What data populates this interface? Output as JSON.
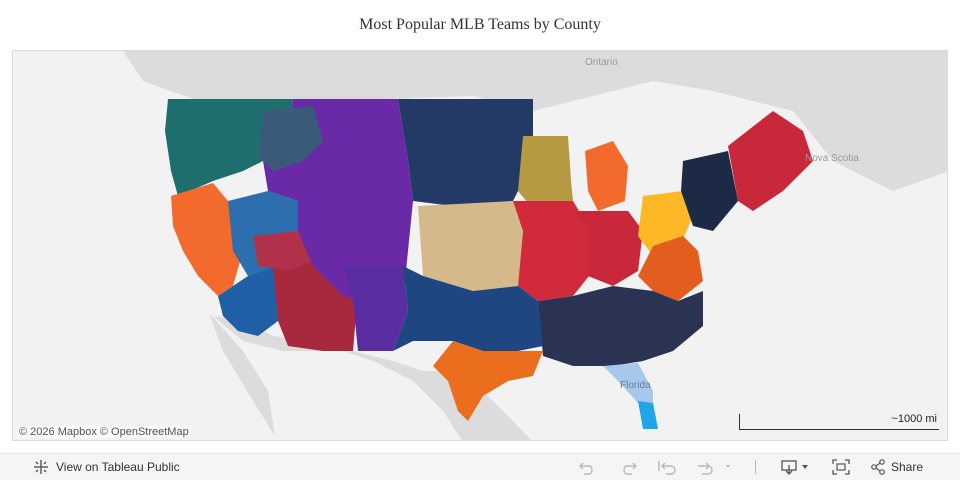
{
  "title": "Most Popular MLB Teams by County",
  "map": {
    "labels": {
      "ontario": "Ontario",
      "nova_scotia": "Nova Scotia",
      "florida": "Florida"
    },
    "attribution": "© 2026 Mapbox  © OpenStreetMap",
    "scale_label": "~1000 mi",
    "colors": {
      "land": "#d6d6d6",
      "water": "#f2f2f2",
      "mariners": "#1f6e6e",
      "rockies": "#6a2aa8",
      "giants": "#f26b2d",
      "dodgers": "#1f5fa5",
      "diamondbacks": "#a8283e",
      "royals": "#d6b98a",
      "twins": "#233a66",
      "brewers": "#b59a42",
      "tigers": "#f26b2d",
      "cardinals": "#d02a3b",
      "reds": "#c8283a",
      "pirates": "#fdb827",
      "braves": "#2a3452",
      "rangers": "#1e4680",
      "astros": "#eb6e1f",
      "yankees": "#1c2a45",
      "redsox": "#c8283a",
      "orioles": "#e35d1f",
      "marlins": "#a6c8ea",
      "rays": "#20a6e8",
      "texans_blue": "#2a4a8a"
    }
  },
  "toolbar": {
    "view_on_public": "View on Tableau Public",
    "share": "Share"
  }
}
